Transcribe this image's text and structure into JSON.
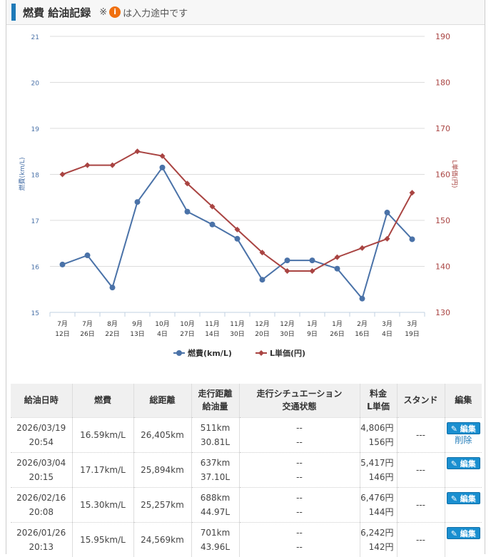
{
  "header": {
    "title": "燃費 給油記録",
    "note_prefix": "※",
    "note_icon": "info-icon",
    "info_glyph": "i",
    "note_suffix": "は入力途中です"
  },
  "chart_data": {
    "type": "line",
    "categories": [
      [
        "7月",
        "12日"
      ],
      [
        "7月",
        "26日"
      ],
      [
        "8月",
        "22日"
      ],
      [
        "9月",
        "13日"
      ],
      [
        "10月",
        "4日"
      ],
      [
        "10月",
        "27日"
      ],
      [
        "11月",
        "14日"
      ],
      [
        "11月",
        "30日"
      ],
      [
        "12月",
        "20日"
      ],
      [
        "12月",
        "30日"
      ],
      [
        "1月",
        "9日"
      ],
      [
        "1月",
        "26日"
      ],
      [
        "2月",
        "16日"
      ],
      [
        "3月",
        "4日"
      ],
      [
        "3月",
        "19日"
      ]
    ],
    "y_left": {
      "label": "燃費(km/L)",
      "range": [
        15,
        21
      ],
      "ticks": [
        15,
        16,
        17,
        18,
        19,
        20,
        21
      ],
      "color": "#4a72a8"
    },
    "y_right": {
      "label": "L単価(円)",
      "range": [
        130,
        190
      ],
      "ticks": [
        130,
        140,
        150,
        160,
        170,
        180,
        190
      ],
      "color": "#a94442"
    },
    "series": [
      {
        "name": "燃費(km/L)",
        "axis": "left",
        "color": "#4a72a8",
        "marker": "circle",
        "values": [
          16.04,
          16.24,
          15.54,
          17.4,
          18.15,
          17.19,
          16.91,
          16.6,
          15.71,
          16.13,
          16.13,
          15.95,
          15.3,
          17.17,
          16.59
        ]
      },
      {
        "name": "L単価(円)",
        "axis": "right",
        "color": "#a94442",
        "marker": "diamond",
        "values": [
          160,
          162,
          162,
          165,
          164,
          158,
          153,
          148,
          143,
          139,
          139,
          142,
          144,
          146,
          156
        ]
      }
    ],
    "legend": "bottom-center",
    "grid": true
  },
  "table": {
    "headers": [
      [
        "給油日時"
      ],
      [
        "燃費"
      ],
      [
        "総距離"
      ],
      [
        "走行距離",
        "給油量"
      ],
      [
        "走行シチュエーション",
        "交通状態"
      ],
      [
        "料金",
        "L単価"
      ],
      [
        "スタンド"
      ],
      [
        "編集"
      ]
    ],
    "edit_label": "編集",
    "delete_label": "削除",
    "rows": [
      {
        "date": "2026/03/19",
        "time": "20:54",
        "economy": "16.59km/L",
        "total": "26,405km",
        "distance": "511km",
        "fuel": "30.81L",
        "situation": "--",
        "traffic": "--",
        "price": "4,806円",
        "unit": "156円",
        "stand": "---",
        "deletable": true
      },
      {
        "date": "2026/03/04",
        "time": "20:15",
        "economy": "17.17km/L",
        "total": "25,894km",
        "distance": "637km",
        "fuel": "37.10L",
        "situation": "--",
        "traffic": "--",
        "price": "5,417円",
        "unit": "146円",
        "stand": "---"
      },
      {
        "date": "2026/02/16",
        "time": "20:08",
        "economy": "15.30km/L",
        "total": "25,257km",
        "distance": "688km",
        "fuel": "44.97L",
        "situation": "--",
        "traffic": "--",
        "price": "6,476円",
        "unit": "144円",
        "stand": "---"
      },
      {
        "date": "2026/01/26",
        "time": "20:13",
        "economy": "15.95km/L",
        "total": "24,569km",
        "distance": "701km",
        "fuel": "43.96L",
        "situation": "--",
        "traffic": "--",
        "price": "6,242円",
        "unit": "142円",
        "stand": "---"
      }
    ]
  }
}
